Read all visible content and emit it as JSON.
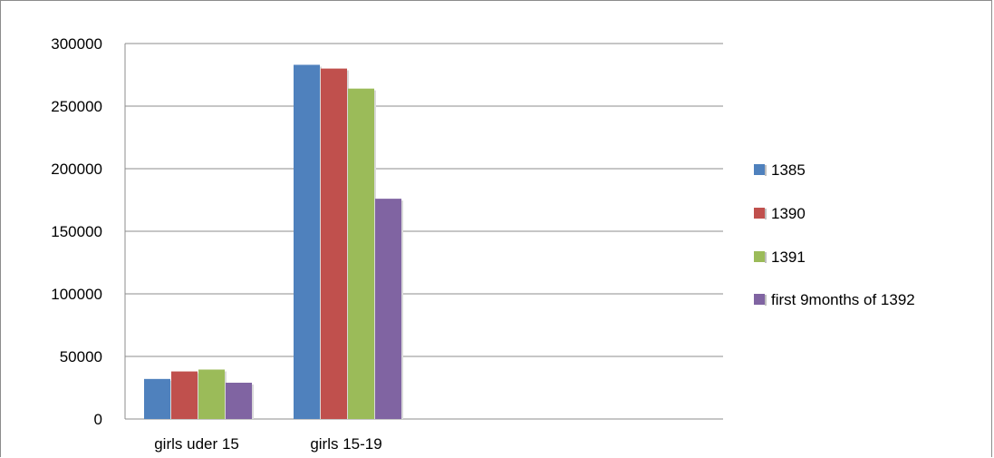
{
  "chart_data": {
    "type": "bar",
    "categories": [
      "girls uder 15",
      "girls 15-19"
    ],
    "series": [
      {
        "name": "1385",
        "values": [
          32000,
          283000
        ],
        "color": "#4f81bd"
      },
      {
        "name": "1390",
        "values": [
          38000,
          280000
        ],
        "color": "#c0504d"
      },
      {
        "name": "1391",
        "values": [
          39500,
          264000
        ],
        "color": "#9bbb59"
      },
      {
        "name": "first 9months of 1392",
        "values": [
          29000,
          176000
        ],
        "color": "#8064a2"
      }
    ],
    "ylim": [
      0,
      300000
    ],
    "yticks": [
      "0",
      "50000",
      "100000",
      "150000",
      "200000",
      "250000",
      "300000"
    ],
    "grid": true,
    "legend": "right"
  }
}
